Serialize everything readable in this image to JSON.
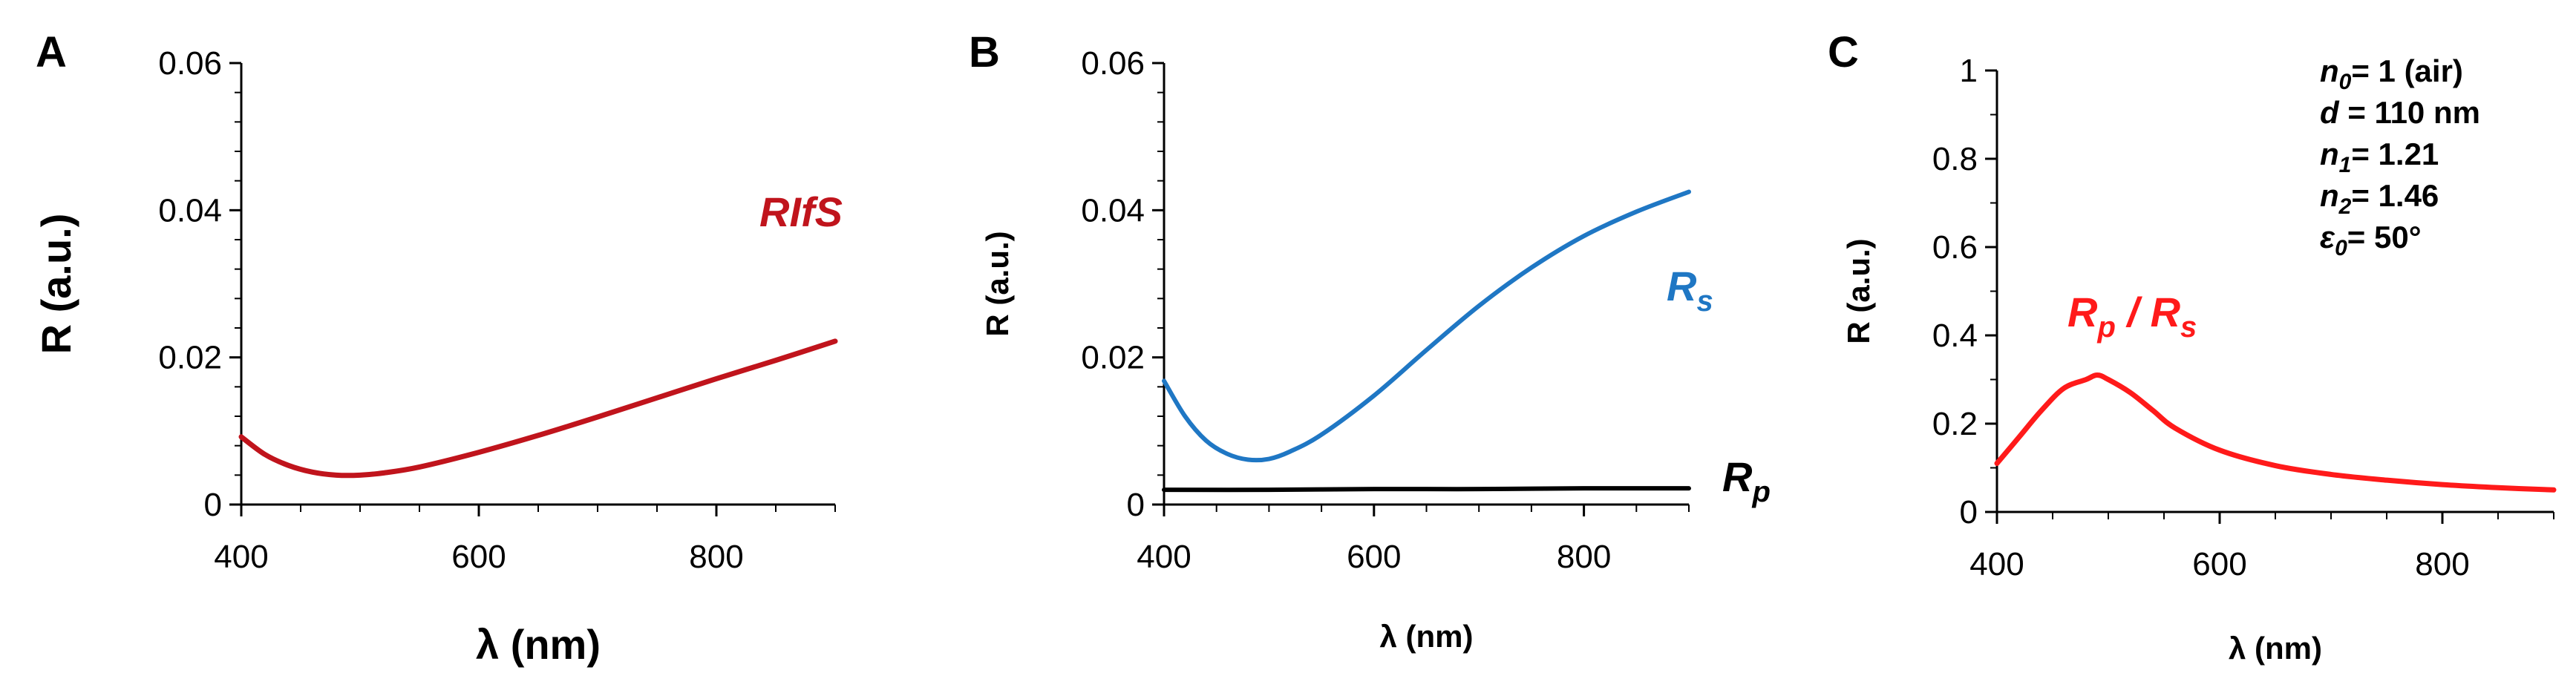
{
  "chart_data": [
    {
      "panel": "A",
      "type": "line",
      "xlabel": "λ (nm)",
      "ylabel": "R (a.u.)",
      "xlim": [
        400,
        900
      ],
      "ylim": [
        0,
        0.06
      ],
      "xticks": [
        "400",
        "600",
        "800"
      ],
      "yticks": [
        "0",
        "0.02",
        "0.04",
        "0.06"
      ],
      "series": [
        {
          "name": "RIfS",
          "color": "#c0141c",
          "x": [
            400,
            420,
            440,
            460,
            480,
            500,
            520,
            550,
            600,
            650,
            700,
            750,
            800,
            850,
            900
          ],
          "y": [
            0.0092,
            0.0068,
            0.0053,
            0.0044,
            0.004,
            0.004,
            0.0043,
            0.0051,
            0.0071,
            0.0094,
            0.0119,
            0.0145,
            0.0171,
            0.0196,
            0.0222
          ]
        }
      ]
    },
    {
      "panel": "B",
      "type": "line",
      "xlabel": "λ (nm)",
      "ylabel": "R (a.u.)",
      "xlim": [
        400,
        900
      ],
      "ylim": [
        0,
        0.06
      ],
      "xticks": [
        "400",
        "600",
        "800"
      ],
      "yticks": [
        "0",
        "0.02",
        "0.04",
        "0.06"
      ],
      "series": [
        {
          "name": "R",
          "subscript": "s",
          "color": "#1f77c4",
          "x": [
            400,
            420,
            440,
            460,
            480,
            500,
            520,
            550,
            600,
            650,
            700,
            750,
            800,
            850,
            900
          ],
          "y": [
            0.0168,
            0.012,
            0.0087,
            0.0069,
            0.0061,
            0.0062,
            0.0072,
            0.0095,
            0.0148,
            0.021,
            0.027,
            0.0322,
            0.0365,
            0.0398,
            0.0425
          ]
        },
        {
          "name": "R",
          "subscript": "p",
          "color": "#000000",
          "x": [
            400,
            500,
            600,
            700,
            800,
            900
          ],
          "y": [
            0.002,
            0.002,
            0.0021,
            0.0021,
            0.0022,
            0.0022
          ]
        }
      ]
    },
    {
      "panel": "C",
      "type": "line",
      "xlabel": "λ (nm)",
      "ylabel": "R (a.u.)",
      "xlim": [
        400,
        900
      ],
      "ylim": [
        0,
        1
      ],
      "xticks": [
        "400",
        "600",
        "800"
      ],
      "yticks": [
        "0",
        "0.2",
        "0.4",
        "0.6",
        "0.8",
        "1"
      ],
      "series": [
        {
          "name": "R",
          "subscript": "p",
          "separator": " / ",
          "name2": "R",
          "subscript2": "s",
          "color": "#ff1a1a",
          "x": [
            400,
            420,
            440,
            460,
            480,
            490,
            500,
            520,
            540,
            560,
            600,
            650,
            700,
            750,
            800,
            850,
            900
          ],
          "y": [
            0.11,
            0.17,
            0.23,
            0.28,
            0.3,
            0.31,
            0.3,
            0.27,
            0.23,
            0.19,
            0.14,
            0.105,
            0.085,
            0.072,
            0.062,
            0.055,
            0.05
          ]
        }
      ],
      "parameters": [
        {
          "sym": "n",
          "sub": "0",
          "text": "= 1 (air)",
          "color": "#000000"
        },
        {
          "sym": "d",
          "sub": "",
          "text": " = 110 nm",
          "color": "#000000"
        },
        {
          "sym": "n",
          "sub": "1",
          "text": "= 1.21",
          "color": "#000000"
        },
        {
          "sym": "n",
          "sub": "2",
          "text": "= 1.46",
          "color": "#000000"
        },
        {
          "sym": "ε",
          "sub": "0",
          "text": "= 50°",
          "color": "#ff1a1a"
        }
      ]
    }
  ]
}
